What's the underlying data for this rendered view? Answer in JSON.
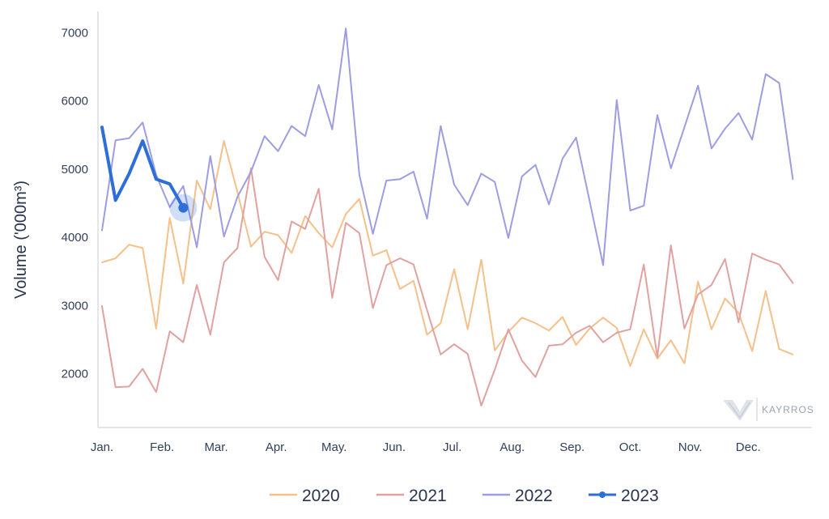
{
  "chart_data": {
    "type": "line",
    "ylabel": "Volume ('000m³)",
    "ylim": [
      1200,
      7300
    ],
    "yticks": [
      2000,
      3000,
      4000,
      5000,
      6000,
      7000
    ],
    "xlim": [
      1,
      53
    ],
    "xticks": [
      {
        "label": "Jan.",
        "week": 1
      },
      {
        "label": "Feb.",
        "week": 5.43
      },
      {
        "label": "Mar.",
        "week": 9.43
      },
      {
        "label": "Apr.",
        "week": 13.86
      },
      {
        "label": "May.",
        "week": 18.14
      },
      {
        "label": "Jun.",
        "week": 22.57
      },
      {
        "label": "Jul.",
        "week": 26.86
      },
      {
        "label": "Aug.",
        "week": 31.29
      },
      {
        "label": "Sep.",
        "week": 35.71
      },
      {
        "label": "Oct.",
        "week": 40
      },
      {
        "label": "Nov.",
        "week": 44.43
      },
      {
        "label": "Dec.",
        "week": 48.71
      }
    ],
    "grid": false,
    "legend_position": "bottom",
    "series": [
      {
        "name": "2020",
        "color": "#f5c08a",
        "values": [
          3620,
          3680,
          3880,
          3830,
          2650,
          4270,
          3310,
          4820,
          4400,
          5400,
          4650,
          3850,
          4070,
          4020,
          3760,
          4300,
          4050,
          3840,
          4330,
          4550,
          3720,
          3800,
          3230,
          3350,
          2560,
          2730,
          3520,
          2640,
          3660,
          2330,
          2600,
          2810,
          2730,
          2620,
          2820,
          2410,
          2650,
          2810,
          2660,
          2100,
          2640,
          2210,
          2480,
          2140,
          3340,
          2640,
          3090,
          2880,
          2320,
          3200,
          2350,
          2270
        ]
      },
      {
        "name": "2021",
        "color": "#e0a2a0",
        "values": [
          2980,
          1790,
          1800,
          2060,
          1720,
          2610,
          2450,
          3290,
          2560,
          3620,
          3830,
          5000,
          3700,
          3360,
          4220,
          4110,
          4700,
          3100,
          4200,
          4050,
          2950,
          3580,
          3680,
          3590,
          2920,
          2270,
          2420,
          2280,
          1520,
          2050,
          2640,
          2180,
          1940,
          2400,
          2420,
          2590,
          2690,
          2450,
          2590,
          2640,
          3590,
          2230,
          3870,
          2650,
          3150,
          3290,
          3670,
          2740,
          3750,
          3660,
          3590,
          3320
        ]
      },
      {
        "name": "2022",
        "color": "#9d9de2",
        "values": [
          4090,
          5410,
          5440,
          5670,
          4900,
          4430,
          4740,
          3840,
          5180,
          4000,
          4580,
          4950,
          5470,
          5250,
          5620,
          5470,
          6220,
          5570,
          7050,
          4900,
          4040,
          4820,
          4840,
          4950,
          4260,
          5620,
          4760,
          4460,
          4920,
          4800,
          3980,
          4880,
          5050,
          4470,
          5140,
          5450,
          4520,
          3580,
          6000,
          4380,
          4450,
          5780,
          5000,
          5600,
          6210,
          5290,
          5580,
          5810,
          5420,
          6380,
          6250,
          4840
        ]
      },
      {
        "name": "2023",
        "color": "#2d6fd6",
        "values": [
          5600,
          4530,
          4920,
          5400,
          4840,
          4770,
          4420
        ],
        "highlight_last": true
      }
    ]
  },
  "watermark": {
    "text": "KAYRROS"
  }
}
